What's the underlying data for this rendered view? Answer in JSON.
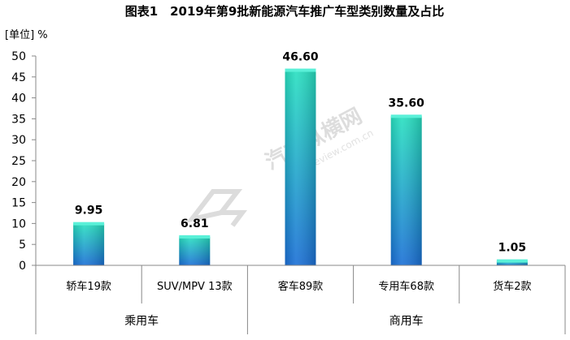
{
  "chart_data": {
    "type": "bar",
    "title": "图表1　2019年第9批新能源汽车推广车型类别数量及占比",
    "unit_label": "[单位] %",
    "categories": [
      "轿车19款",
      "SUV/MPV 13款",
      "客车89款",
      "专用车68款",
      "货车2款"
    ],
    "values": [
      9.95,
      6.81,
      46.6,
      35.6,
      1.05
    ],
    "value_labels": [
      "9.95",
      "6.81",
      "46.60",
      "35.60",
      "1.05"
    ],
    "groups": [
      {
        "label": "乘用车",
        "categories": [
          "轿车19款",
          "SUV/MPV 13款"
        ]
      },
      {
        "label": "商用车",
        "categories": [
          "客车89款",
          "专用车68款",
          "货车2款"
        ]
      }
    ],
    "ylim": [
      0,
      50
    ],
    "yticks": [
      "0",
      "5",
      "10",
      "15",
      "20",
      "25",
      "30",
      "35",
      "40",
      "45",
      "50"
    ],
    "grid": false,
    "legend": "none"
  },
  "watermark": {
    "text": "汽车纵横网",
    "url": "autoreview.com.cn"
  },
  "colors": {
    "bar_top": "#27e0c0",
    "bar_bottom": "#1a6fd6",
    "bar_cap": "#5af0d8",
    "axis": "#888888"
  }
}
